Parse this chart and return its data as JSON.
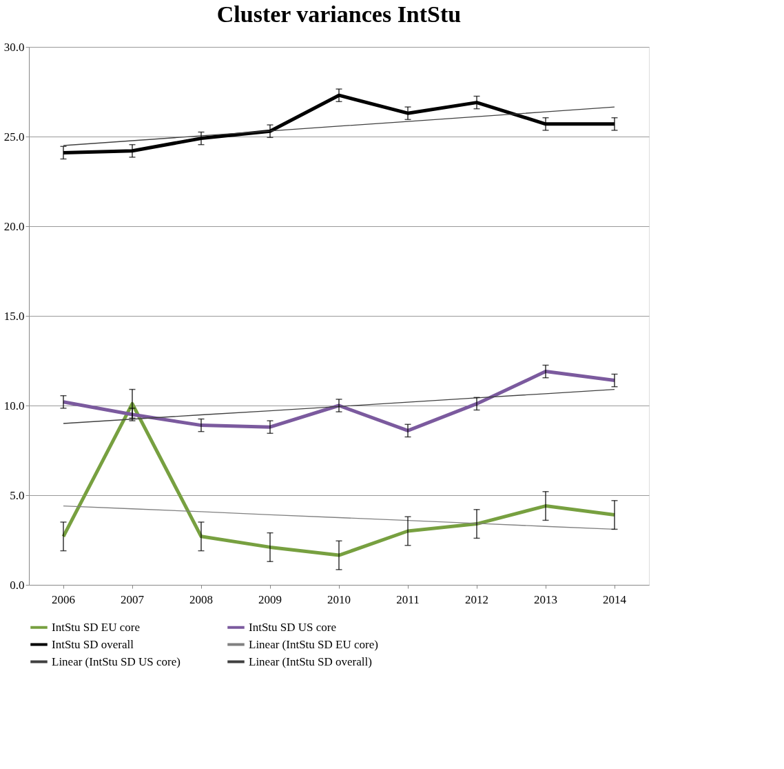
{
  "chart_data": {
    "type": "line",
    "title": "Cluster variances IntStu",
    "categories": [
      "2006",
      "2007",
      "2008",
      "2009",
      "2010",
      "2011",
      "2012",
      "2013",
      "2014"
    ],
    "series": [
      {
        "name": "IntStu SD EU core",
        "color": "#77a040",
        "values": [
          2.7,
          10.1,
          2.7,
          2.1,
          1.65,
          3.0,
          3.4,
          4.4,
          3.9
        ],
        "errors": [
          0.8,
          0.8,
          0.8,
          0.8,
          0.8,
          0.8,
          0.8,
          0.8,
          0.8
        ]
      },
      {
        "name": "IntStu SD US core",
        "color": "#7b5a9e",
        "values": [
          10.2,
          9.5,
          8.9,
          8.8,
          10.0,
          8.6,
          10.1,
          11.9,
          11.4
        ],
        "errors": [
          0.35,
          0.35,
          0.35,
          0.35,
          0.35,
          0.35,
          0.35,
          0.35,
          0.35
        ]
      },
      {
        "name": "IntStu SD overall",
        "color": "#000000",
        "values": [
          24.1,
          24.2,
          24.9,
          25.3,
          27.3,
          26.3,
          26.9,
          25.7,
          25.7
        ],
        "errors": [
          0.35,
          0.35,
          0.35,
          0.35,
          0.35,
          0.35,
          0.35,
          0.35,
          0.35
        ]
      },
      {
        "name": "Linear (IntStu SD EU core)",
        "color": "#808080",
        "values": [
          4.4,
          4.24,
          4.08,
          3.91,
          3.75,
          3.59,
          3.43,
          3.26,
          3.1
        ]
      },
      {
        "name": "Linear (IntStu SD US core)",
        "color": "#404040",
        "values": [
          9.0,
          9.24,
          9.48,
          9.71,
          9.95,
          10.19,
          10.43,
          10.66,
          10.9
        ]
      },
      {
        "name": "Linear (IntStu SD overall)",
        "color": "#404040",
        "values": [
          24.5,
          24.77,
          25.04,
          25.31,
          25.58,
          25.84,
          26.11,
          26.38,
          26.65
        ]
      }
    ],
    "ylim": [
      0,
      30
    ],
    "yticks": [
      {
        "value": 0,
        "label": "0.0"
      },
      {
        "value": 5,
        "label": "5.0"
      },
      {
        "value": 10,
        "label": "10.0"
      },
      {
        "value": 15,
        "label": "15.0"
      },
      {
        "value": 20,
        "label": "20.0"
      },
      {
        "value": 25,
        "label": "25.0"
      },
      {
        "value": 30,
        "label": "30.0"
      }
    ],
    "grid": "y",
    "legend": "bottom"
  }
}
